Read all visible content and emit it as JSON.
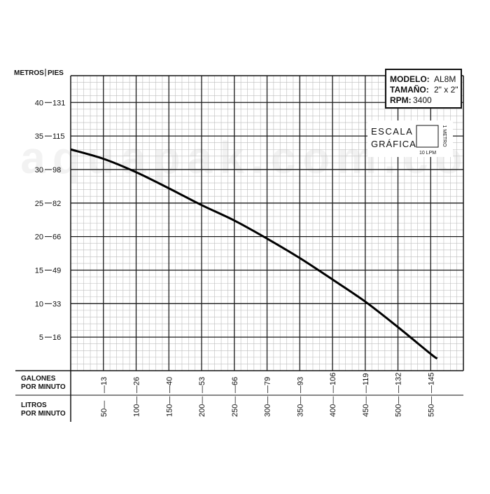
{
  "chart_data": {
    "type": "line",
    "left_axis": {
      "label": "METROS",
      "ticks": [
        5,
        10,
        15,
        20,
        25,
        30,
        35,
        40
      ]
    },
    "right_axis": {
      "label": "PIES",
      "ticks": [
        16,
        33,
        49,
        66,
        82,
        98,
        115,
        131
      ]
    },
    "gpm_axis": {
      "label_line1": "GALONES",
      "label_line2": "POR MINUTO",
      "ticks": [
        13,
        26,
        40,
        53,
        66,
        79,
        93,
        106,
        119,
        132,
        145
      ]
    },
    "lpm_axis": {
      "label_line1": "LITROS",
      "label_line2": "POR MINUTO",
      "ticks": [
        50,
        100,
        150,
        200,
        250,
        300,
        350,
        400,
        450,
        500,
        550
      ]
    },
    "xlim": [
      0,
      600
    ],
    "ylim": [
      0,
      44
    ],
    "grid": true,
    "series": [
      {
        "x": [
          0,
          50,
          100,
          150,
          200,
          250,
          300,
          350,
          400,
          450,
          500,
          550,
          560
        ],
        "y": [
          33,
          31.6,
          29.6,
          27.2,
          24.7,
          22.4,
          19.7,
          16.8,
          13.6,
          10.3,
          6.5,
          2.5,
          1.8
        ]
      }
    ],
    "spec_box": {
      "modelo_label": "MODELO:",
      "modelo_value": "AL8M",
      "tamano_label": "TAMAÑO:",
      "tamano_value": "2\" x 2\"",
      "rpm_label": "RPM:",
      "rpm_value": "3400"
    },
    "escala": {
      "line1": "ESCALA",
      "line2": "GRÁFICA",
      "unit_x": "10 LPM",
      "unit_y": "1 METRO"
    },
    "watermark": "aquapak.com.co"
  },
  "colors": {
    "curve": "#000000",
    "major_grid": "#1a1a1a",
    "minor_grid": "#bdbdbd"
  }
}
